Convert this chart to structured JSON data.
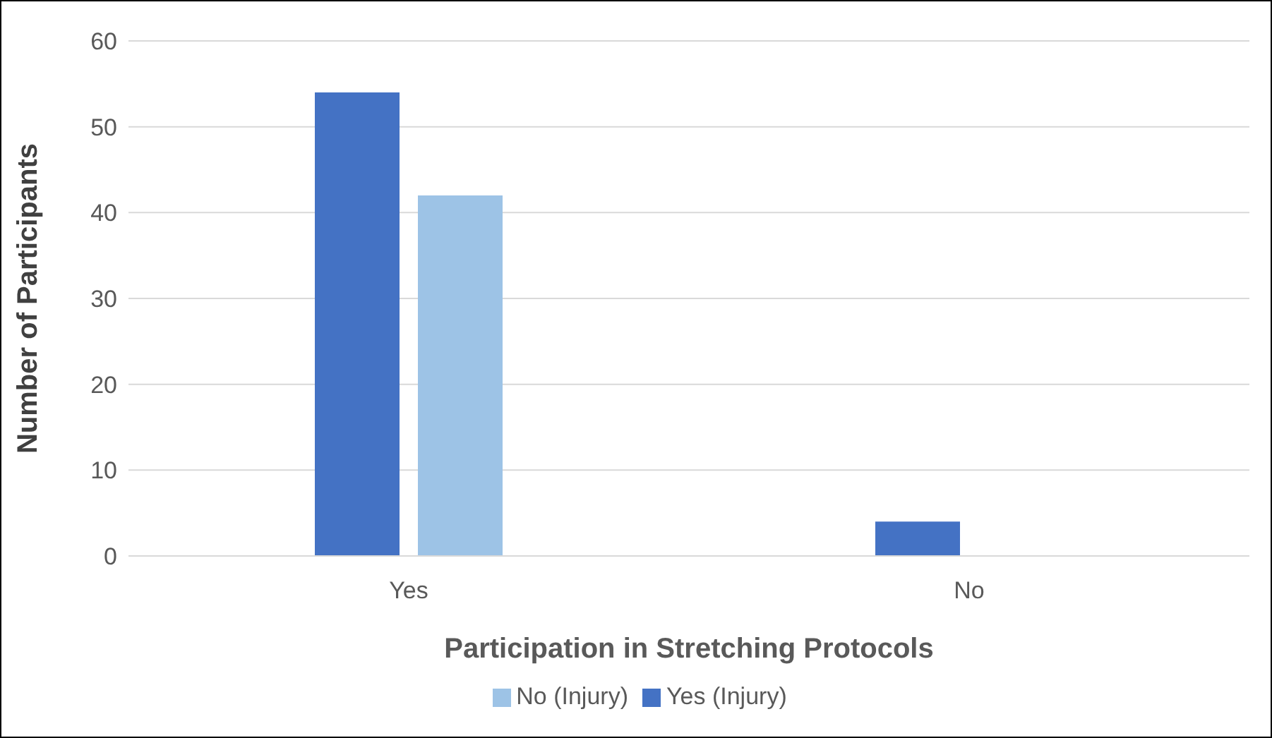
{
  "chart_data": {
    "type": "bar",
    "xlabel": "Participation in Stretching Protocols",
    "ylabel": "Number of Participants",
    "categories": [
      "Yes",
      "No"
    ],
    "series": [
      {
        "name": "Yes (Injury)",
        "color": "#4472c4",
        "values": [
          54,
          4
        ]
      },
      {
        "name": "No (Injury)",
        "color": "#9dc3e6",
        "values": [
          42,
          0
        ]
      }
    ],
    "ylim": [
      0,
      60
    ],
    "yticks": [
      0,
      10,
      20,
      30,
      40,
      50,
      60
    ],
    "grid": "y",
    "legend": "bottom"
  }
}
